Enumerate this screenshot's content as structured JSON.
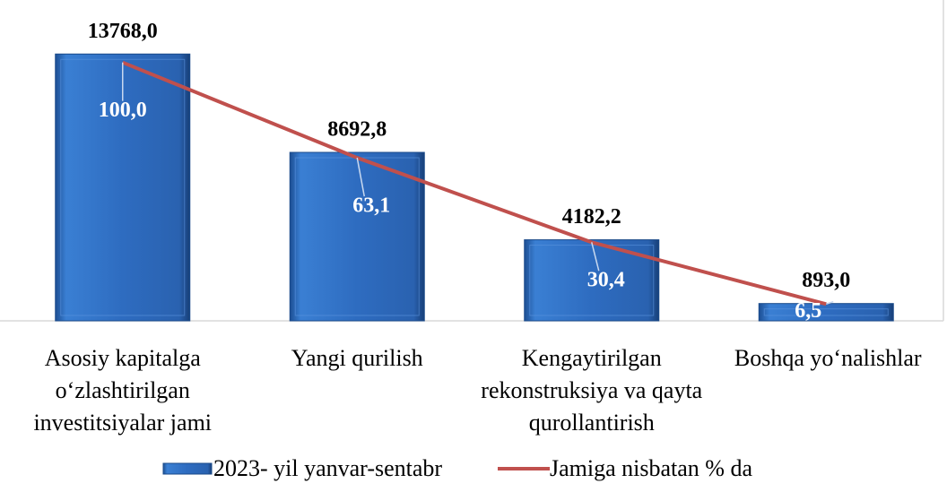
{
  "chart_data": {
    "type": "bar",
    "categories": [
      "Asosiy kapitalga o‘zlashtirilgan investitsiyalar jami",
      "Yangi qurilish",
      "Kengaytirilgan rekonstruksiya va qayta qurollantirish",
      "Boshqa yo‘nalishlar"
    ],
    "series": [
      {
        "name": "2023- yil yanvar-sentabr",
        "type": "bar",
        "color": "#2e6cc0",
        "values": [
          13768.0,
          8692.8,
          4182.2,
          893.0
        ],
        "value_labels": [
          "13768,0",
          "8692,8",
          "4182,2",
          "893,0"
        ]
      },
      {
        "name": "Jamiga nisbatan % da",
        "type": "line",
        "axis": "y2",
        "color": "#c0504d",
        "values": [
          100.0,
          63.1,
          30.4,
          6.5
        ],
        "value_labels": [
          "100,0",
          "63,1",
          "30,4",
          "6,5"
        ]
      }
    ],
    "ylim": [
      0,
      16000
    ],
    "y2lim": [
      0,
      120
    ],
    "legend": "bottom"
  }
}
